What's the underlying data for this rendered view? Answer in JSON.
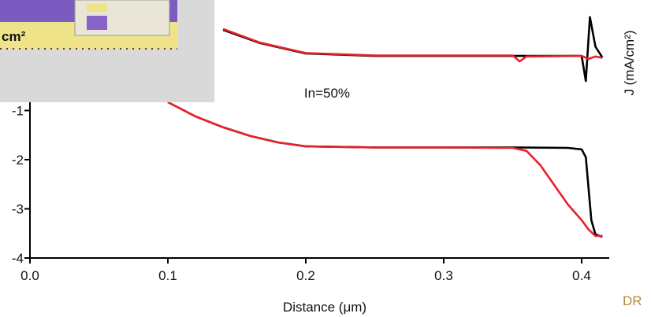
{
  "chart_data": {
    "type": "line",
    "xlabel": "Distance (μm)",
    "y2_label": "J (mA/cm²)",
    "annotation": "In=50%",
    "watermark": "DR",
    "inset_label": "cm²",
    "xlim": [
      0,
      0.42
    ],
    "ylim": [
      -4,
      1.2
    ],
    "xticks": [
      {
        "value": 0,
        "label": "0.0"
      },
      0.1,
      0.2,
      0.3,
      0.4
    ],
    "yticks": [
      -4,
      -3,
      -2,
      -1
    ],
    "series": [
      {
        "color": "#000000",
        "x": [
          0.14,
          0.167,
          0.2,
          0.25,
          0.3,
          0.35,
          0.4,
          0.403,
          0.406,
          0.41,
          0.415
        ],
        "values": [
          0.64,
          0.37,
          0.16,
          0.11,
          0.11,
          0.11,
          0.11,
          -0.4,
          0.9,
          0.3,
          0.08
        ]
      },
      {
        "color": "#000000",
        "x": [
          0.1,
          0.12,
          0.14,
          0.16,
          0.18,
          0.2,
          0.25,
          0.3,
          0.35,
          0.39,
          0.4,
          0.403,
          0.405,
          0.407,
          0.41,
          0.415
        ],
        "values": [
          -0.83,
          -1.12,
          -1.34,
          -1.52,
          -1.65,
          -1.73,
          -1.75,
          -1.75,
          -1.75,
          -1.76,
          -1.79,
          -1.95,
          -2.59,
          -3.23,
          -3.52,
          -3.57
        ]
      },
      {
        "color": "#e8202a",
        "x": [
          0.14,
          0.167,
          0.2,
          0.25,
          0.3,
          0.35,
          0.355,
          0.36,
          0.4,
          0.405,
          0.41,
          0.415
        ],
        "values": [
          0.66,
          0.38,
          0.17,
          0.12,
          0.12,
          0.12,
          0.0,
          0.1,
          0.11,
          0.05,
          0.1,
          0.07
        ]
      },
      {
        "color": "#e8202a",
        "x": [
          0.1,
          0.12,
          0.14,
          0.16,
          0.18,
          0.2,
          0.25,
          0.3,
          0.35,
          0.36,
          0.37,
          0.38,
          0.39,
          0.4,
          0.405,
          0.41,
          0.415
        ],
        "values": [
          -0.83,
          -1.12,
          -1.34,
          -1.52,
          -1.65,
          -1.73,
          -1.75,
          -1.75,
          -1.76,
          -1.82,
          -2.11,
          -2.51,
          -2.91,
          -3.23,
          -3.42,
          -3.55,
          -3.55
        ]
      }
    ]
  }
}
